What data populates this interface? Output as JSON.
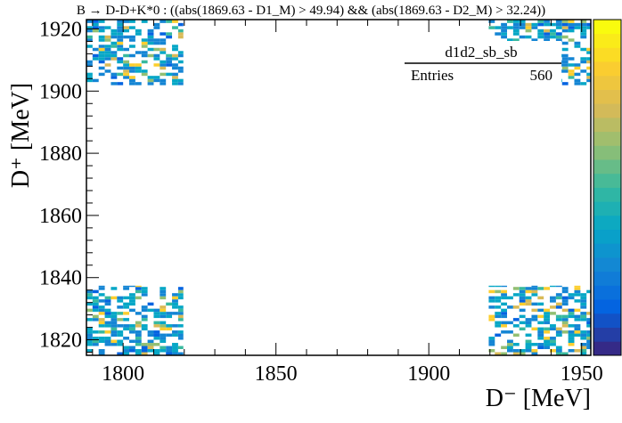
{
  "chart_data": {
    "type": "heatmap",
    "title": "B → D-D+K*0 : ((abs(1869.63 - D1_M) > 49.94) && (abs(1869.63 - D2_M) > 32.24))",
    "xlabel": "D⁻ [MeV]",
    "ylabel": "D⁺ [MeV]",
    "xlim": [
      1788,
      1953
    ],
    "ylim": [
      1815,
      1923
    ],
    "x_ticks": [
      1800,
      1850,
      1900,
      1950
    ],
    "y_ticks": [
      1820,
      1840,
      1860,
      1880,
      1900,
      1920
    ],
    "bin_width_x": 2.0,
    "bin_width_y": 1.0,
    "stats_box": {
      "name": "d1d2_sb_sb",
      "entries_label": "Entries",
      "entries": "560"
    },
    "sideband_regions": [
      {
        "name": "bottom-left",
        "x": [
          1788,
          1819.7
        ],
        "y": [
          1815,
          1837.4
        ]
      },
      {
        "name": "top-left",
        "x": [
          1788,
          1819.7
        ],
        "y": [
          1901.9,
          1923
        ]
      },
      {
        "name": "bottom-right",
        "x": [
          1919.6,
          1953
        ],
        "y": [
          1815,
          1837.4
        ]
      },
      {
        "name": "top-right",
        "x": [
          1919.6,
          1953
        ],
        "y": [
          1901.9,
          1923
        ]
      }
    ],
    "z_range": [
      1,
      4
    ],
    "palette": [
      "#352a87",
      "#0363e1",
      "#1485d4",
      "#06a7c6",
      "#38b99e",
      "#92bf73",
      "#d9ba56",
      "#fcce2e",
      "#f9fb0e"
    ],
    "grid": false
  }
}
